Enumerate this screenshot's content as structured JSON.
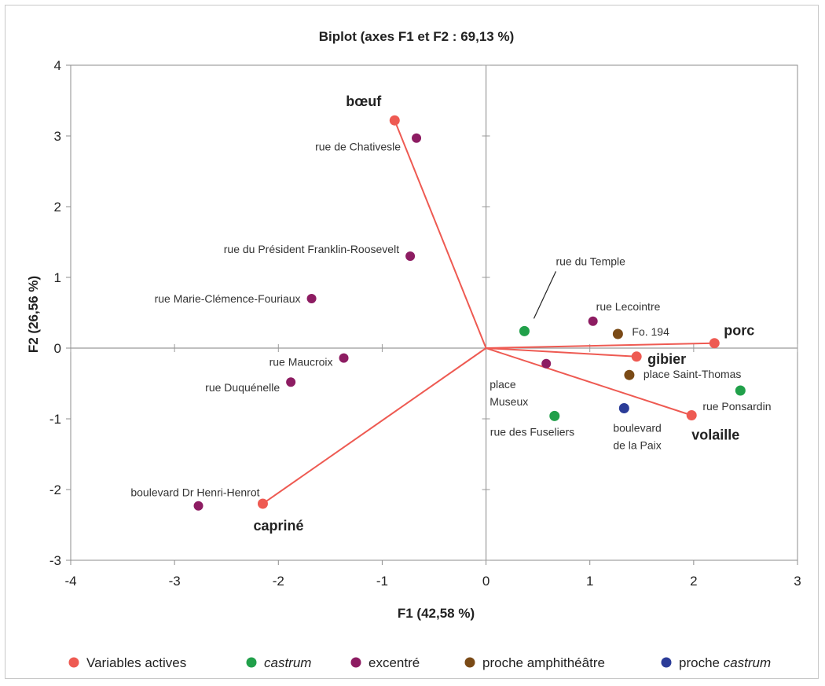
{
  "chart_data": {
    "type": "scatter",
    "title": "Biplot (axes F1 et F2 : 69,13 %)",
    "xlabel": "F1 (42,58 %)",
    "ylabel": "F2 (26,56 %)",
    "xlim": [
      -4,
      3
    ],
    "ylim": [
      -3,
      4
    ],
    "xticks": [
      "-4",
      "-3",
      "-2",
      "-1",
      "0",
      "1",
      "2",
      "3"
    ],
    "yticks": [
      "-3",
      "-2",
      "-1",
      "0",
      "1",
      "2",
      "3",
      "4"
    ],
    "grid": false,
    "legend_position": "bottom",
    "colors": {
      "variables": "#ee5a52",
      "castrum": "#21a04a",
      "excentre": "#8d1c62",
      "amphi": "#7a4a16",
      "proche_castrum": "#2b3c98"
    },
    "legend": [
      {
        "key": "variables",
        "text": "Variables actives",
        "italic": false
      },
      {
        "key": "castrum",
        "text": "castrum",
        "italic": true
      },
      {
        "key": "excentre",
        "text": "excentré",
        "italic": false
      },
      {
        "key": "amphi",
        "text": "proche amphithéâtre",
        "italic": false
      },
      {
        "key": "proche_castrum",
        "text": "proche ",
        "italic_suffix": "castrum"
      }
    ],
    "variables": [
      {
        "name": "bœuf",
        "x": -0.88,
        "y": 3.22
      },
      {
        "name": "porc",
        "x": 2.2,
        "y": 0.07
      },
      {
        "name": "gibier",
        "x": 1.45,
        "y": -0.12
      },
      {
        "name": "volaille",
        "x": 1.98,
        "y": -0.95
      },
      {
        "name": "capriné",
        "x": -2.15,
        "y": -2.2
      }
    ],
    "observations": [
      {
        "name": "rue de Chativesle",
        "group": "excentre",
        "x": -0.67,
        "y": 2.97
      },
      {
        "name": "rue du Président Franklin-Roosevelt",
        "group": "excentre",
        "x": -0.73,
        "y": 1.3
      },
      {
        "name": "rue Marie-Clémence-Fouriaux",
        "group": "excentre",
        "x": -1.68,
        "y": 0.7
      },
      {
        "name": "rue Maucroix",
        "group": "excentre",
        "x": -1.37,
        "y": -0.14
      },
      {
        "name": "rue Duquénelle",
        "group": "excentre",
        "x": -1.88,
        "y": -0.48
      },
      {
        "name": "boulevard Dr Henri-Henrot",
        "group": "excentre",
        "x": -2.77,
        "y": -2.23
      },
      {
        "name": "rue Lecointre",
        "group": "excentre",
        "x": 1.03,
        "y": 0.38
      },
      {
        "name": "place Museux",
        "group": "excentre",
        "x": 0.58,
        "y": -0.22
      },
      {
        "name": "rue du Temple",
        "group": "castrum",
        "x": 0.37,
        "y": 0.24
      },
      {
        "name": "rue des Fuseliers",
        "group": "castrum",
        "x": 0.66,
        "y": -0.96
      },
      {
        "name": "rue Ponsardin",
        "group": "castrum",
        "x": 2.45,
        "y": -0.6
      },
      {
        "name": "Fo. 194",
        "group": "amphi",
        "x": 1.27,
        "y": 0.2
      },
      {
        "name": "place Saint-Thomas",
        "group": "amphi",
        "x": 1.38,
        "y": -0.38
      },
      {
        "name": "boulevard de la Paix",
        "group": "proche_castrum",
        "x": 1.33,
        "y": -0.85
      }
    ]
  }
}
